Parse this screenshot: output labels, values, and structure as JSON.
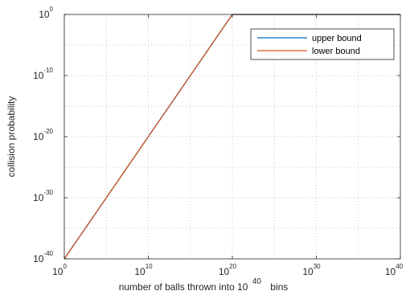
{
  "chart_data": {
    "type": "line",
    "xscale": "log",
    "yscale": "log",
    "xlim": [
      "1e0",
      "1e40"
    ],
    "ylim": [
      "1e-40",
      "1e0"
    ],
    "xticks": [
      {
        "base": "10",
        "exp": "0"
      },
      {
        "base": "10",
        "exp": "10"
      },
      {
        "base": "10",
        "exp": "20"
      },
      {
        "base": "10",
        "exp": "30"
      },
      {
        "base": "10",
        "exp": "40"
      }
    ],
    "yticks": [
      {
        "base": "10",
        "exp": "0"
      },
      {
        "base": "10",
        "exp": "-10"
      },
      {
        "base": "10",
        "exp": "-20"
      },
      {
        "base": "10",
        "exp": "-30"
      },
      {
        "base": "10",
        "exp": "-40"
      }
    ],
    "xlabel": {
      "prefix": "number of balls thrown into 10",
      "exponent": "40",
      "suffix": "bins"
    },
    "ylabel": "collision probability",
    "grid": true,
    "legend_position": "top-right",
    "series": [
      {
        "name": "upper bound",
        "color": "#0072bd",
        "points": [
          {
            "x": "1e0",
            "y": "1e-40"
          },
          {
            "x": "1e5",
            "y": "1e-30"
          },
          {
            "x": "1e10",
            "y": "1e-20"
          },
          {
            "x": "1e15",
            "y": "1e-10"
          },
          {
            "x": "1e20",
            "y": "1e0"
          },
          {
            "x": "1e40",
            "y": "1e0"
          }
        ]
      },
      {
        "name": "lower bound",
        "color": "#d95319",
        "points": [
          {
            "x": "1e0",
            "y": "1e-40"
          },
          {
            "x": "1e5",
            "y": "1e-30"
          },
          {
            "x": "1e10",
            "y": "1e-20"
          },
          {
            "x": "1e15",
            "y": "1e-10"
          },
          {
            "x": "1e20",
            "y": "1e0"
          },
          {
            "x": "1e40",
            "y": "1e0"
          }
        ]
      }
    ]
  }
}
